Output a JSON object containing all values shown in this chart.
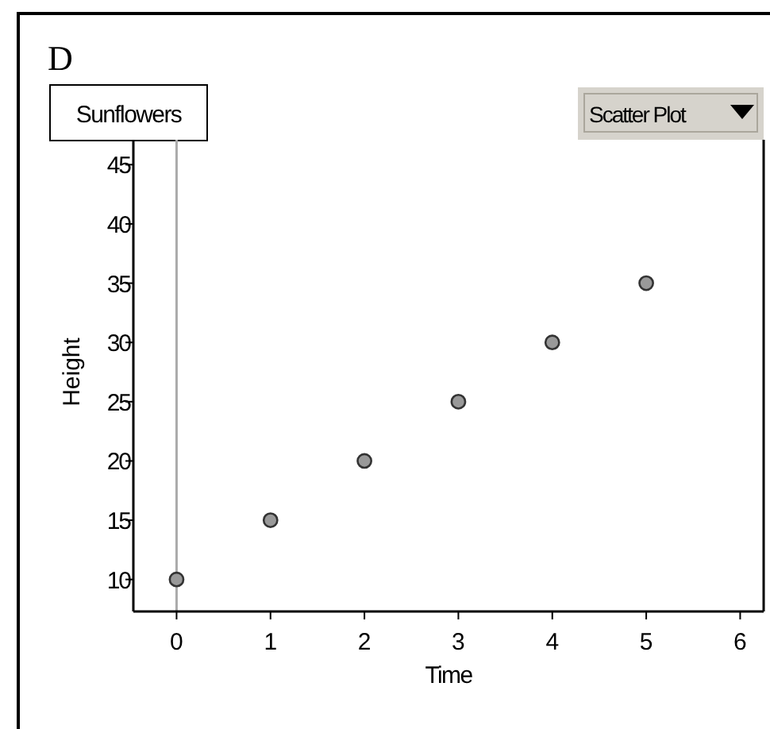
{
  "chart_data": {
    "type": "scatter",
    "title": "D",
    "subtitle": "Sunflowers",
    "annotations": [
      "Scatter Plot"
    ],
    "xlabel": "Time",
    "ylabel": "Height",
    "x": [
      0,
      1,
      2,
      3,
      4,
      5
    ],
    "values": [
      10,
      15,
      20,
      25,
      30,
      35
    ],
    "color": "#999999",
    "marker": "circle",
    "xlim": [
      -0.46,
      6.25
    ],
    "xticks": [
      0,
      1,
      2,
      3,
      4,
      5,
      6
    ],
    "ylim": [
      7.3,
      47.1
    ],
    "yticks": [
      10,
      15,
      20,
      25,
      30,
      35,
      40,
      45
    ],
    "ref_lines": [
      {
        "axis": "x",
        "value": 0,
        "color": "#aaaaaa"
      }
    ],
    "grid": false
  }
}
